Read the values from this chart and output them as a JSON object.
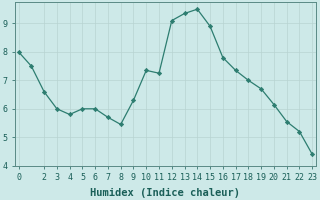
{
  "x": [
    0,
    1,
    2,
    3,
    4,
    5,
    6,
    7,
    8,
    9,
    10,
    11,
    12,
    13,
    14,
    15,
    16,
    17,
    18,
    19,
    20,
    21,
    22,
    23
  ],
  "y": [
    8.0,
    7.5,
    6.6,
    6.0,
    5.8,
    6.0,
    6.0,
    5.7,
    5.45,
    6.3,
    7.35,
    7.25,
    9.1,
    9.35,
    9.5,
    8.9,
    7.8,
    7.35,
    7.0,
    6.7,
    6.15,
    5.55,
    5.2,
    4.4
  ],
  "xlim": [
    -0.3,
    23.3
  ],
  "ylim": [
    4.0,
    9.75
  ],
  "xtick_positions": [
    0,
    2,
    3,
    4,
    5,
    6,
    7,
    8,
    9,
    10,
    11,
    12,
    13,
    14,
    15,
    16,
    17,
    18,
    19,
    20,
    21,
    22,
    23
  ],
  "xtick_labels": [
    "0",
    "2",
    "3",
    "4",
    "5",
    "6",
    "7",
    "8",
    "9",
    "10",
    "11",
    "12",
    "13",
    "14",
    "15",
    "16",
    "17",
    "18",
    "19",
    "20",
    "21",
    "22",
    "23"
  ],
  "ytick_positions": [
    4,
    5,
    6,
    7,
    8,
    9
  ],
  "ytick_labels": [
    "4",
    "5",
    "6",
    "7",
    "8",
    "9"
  ],
  "xlabel": "Humidex (Indice chaleur)",
  "line_color": "#2d7d70",
  "marker": "D",
  "marker_size": 2.2,
  "bg_color": "#cde9e8",
  "grid_color": "#b8d4d2",
  "spine_color": "#5a8a85",
  "tick_label_color": "#1a5f58",
  "xlabel_color": "#1a5f58",
  "xlabel_fontsize": 7.5,
  "tick_fontsize": 6.0,
  "figsize": [
    3.2,
    2.0
  ],
  "dpi": 100
}
